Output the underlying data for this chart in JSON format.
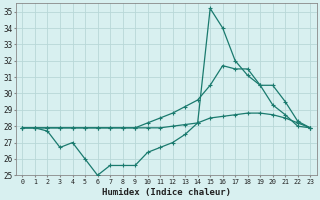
{
  "x": [
    0,
    1,
    2,
    3,
    4,
    5,
    6,
    7,
    8,
    9,
    10,
    11,
    12,
    13,
    14,
    15,
    16,
    17,
    18,
    19,
    20,
    21,
    22,
    23
  ],
  "line1": [
    27.9,
    27.9,
    27.7,
    26.7,
    27.0,
    26.0,
    25.0,
    25.6,
    25.6,
    25.6,
    26.4,
    26.7,
    27.0,
    27.5,
    28.2,
    35.2,
    34.0,
    32.0,
    31.1,
    30.5,
    29.3,
    28.7,
    28.0,
    27.9
  ],
  "line2": [
    27.9,
    27.9,
    27.9,
    27.9,
    27.9,
    27.9,
    27.9,
    27.9,
    27.9,
    27.9,
    28.2,
    28.5,
    28.8,
    29.2,
    29.6,
    30.5,
    31.7,
    31.5,
    31.5,
    30.5,
    30.5,
    29.5,
    28.3,
    27.9
  ],
  "line3": [
    27.9,
    27.9,
    27.9,
    27.9,
    27.9,
    27.9,
    27.9,
    27.9,
    27.9,
    27.9,
    27.9,
    27.9,
    28.0,
    28.1,
    28.2,
    28.5,
    28.6,
    28.7,
    28.8,
    28.8,
    28.7,
    28.5,
    28.2,
    27.9
  ],
  "line_color": "#1a7a6e",
  "bg_color": "#d8f0f0",
  "grid_color": "#b8d8d8",
  "xlabel": "Humidex (Indice chaleur)",
  "xlim": [
    -0.5,
    23.5
  ],
  "ylim": [
    25,
    35.5
  ],
  "yticks": [
    25,
    26,
    27,
    28,
    29,
    30,
    31,
    32,
    33,
    34,
    35
  ],
  "xtick_labels": [
    "0",
    "1",
    "2",
    "3",
    "4",
    "5",
    "6",
    "7",
    "8",
    "9",
    "10",
    "11",
    "12",
    "13",
    "14",
    "15",
    "16",
    "17",
    "18",
    "19",
    "20",
    "21",
    "22",
    "23"
  ]
}
